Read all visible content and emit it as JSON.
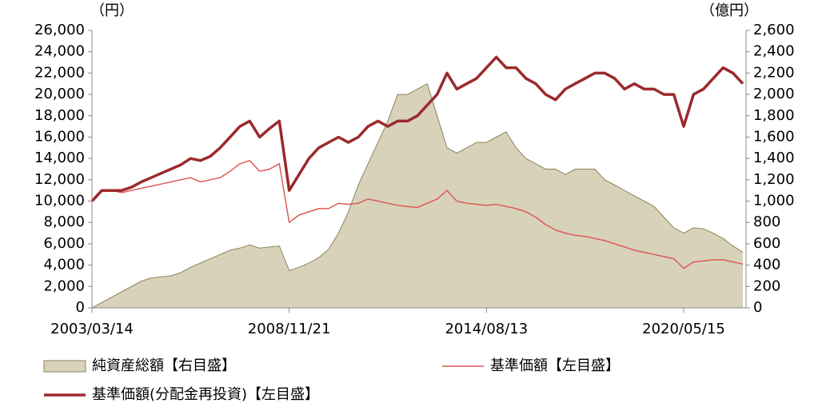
{
  "chart_data": {
    "type": "line",
    "ylabel": "（円）",
    "y2label": "（億円）",
    "categories": [
      "2003/03/14",
      null,
      null,
      null,
      null,
      null,
      null,
      null,
      null,
      null,
      null,
      null,
      null,
      null,
      null,
      null,
      null,
      null,
      null,
      null,
      "2008/11/21",
      null,
      null,
      null,
      null,
      null,
      null,
      null,
      null,
      null,
      null,
      null,
      null,
      null,
      null,
      null,
      null,
      null,
      null,
      null,
      "2014/08/13",
      null,
      null,
      null,
      null,
      null,
      null,
      null,
      null,
      null,
      null,
      null,
      null,
      null,
      null,
      null,
      null,
      null,
      null,
      null,
      "2020/05/15",
      null,
      null,
      null,
      null,
      null,
      null
    ],
    "ylim": [
      0,
      26000
    ],
    "yticks": [
      0,
      {
        "value": 2000,
        "label": "2,000"
      },
      {
        "value": 4000,
        "label": "4,000"
      },
      {
        "value": 6000,
        "label": "6,000"
      },
      {
        "value": 8000,
        "label": "8,000"
      },
      {
        "value": 10000,
        "label": "10,000"
      },
      {
        "value": 12000,
        "label": "12,000"
      },
      {
        "value": 14000,
        "label": "14,000"
      },
      {
        "value": 16000,
        "label": "16,000"
      },
      {
        "value": 18000,
        "label": "18,000"
      },
      {
        "value": 20000,
        "label": "20,000"
      },
      {
        "value": 22000,
        "label": "22,000"
      },
      {
        "value": 24000,
        "label": "24,000"
      },
      {
        "value": 26000,
        "label": "26,000"
      }
    ],
    "y2lim": [
      0,
      2600
    ],
    "y2ticks": [
      0,
      200,
      400,
      600,
      800,
      {
        "value": 1000,
        "label": "1,000"
      },
      {
        "value": 1200,
        "label": "1,200"
      },
      {
        "value": 1400,
        "label": "1,400"
      },
      {
        "value": 1600,
        "label": "1,600"
      },
      {
        "value": 1800,
        "label": "1,800"
      },
      {
        "value": 2000,
        "label": "2,000"
      },
      {
        "value": 2200,
        "label": "2,200"
      },
      {
        "value": 2400,
        "label": "2,400"
      },
      {
        "value": 2600,
        "label": "2,600"
      }
    ],
    "grid": false,
    "series": [
      {
        "name": "純資産総額【右目盛】",
        "kind": "area",
        "axis": "y2",
        "color": "#d8d2bb",
        "edge_color": "#8a845a",
        "values": [
          0,
          50,
          100,
          150,
          200,
          250,
          280,
          290,
          300,
          330,
          380,
          420,
          460,
          500,
          540,
          560,
          590,
          560,
          570,
          580,
          350,
          380,
          420,
          470,
          550,
          700,
          900,
          1150,
          1350,
          1550,
          1750,
          2000,
          2000,
          2050,
          2100,
          1800,
          1500,
          1450,
          1500,
          1550,
          1550,
          1600,
          1650,
          1500,
          1400,
          1350,
          1300,
          1300,
          1250,
          1300,
          1300,
          1300,
          1200,
          1150,
          1100,
          1050,
          1000,
          950,
          850,
          750,
          700,
          750,
          740,
          700,
          650,
          580,
          520
        ]
      },
      {
        "name": "基準価額【左目盛】",
        "kind": "line",
        "color": "#dc5a55",
        "width": 1.5,
        "values": [
          10000,
          11000,
          11000,
          10800,
          11000,
          11200,
          11400,
          11600,
          11800,
          12000,
          12200,
          11800,
          12000,
          12200,
          12800,
          13500,
          13800,
          12800,
          13000,
          13500,
          8000,
          8700,
          9000,
          9300,
          9300,
          9800,
          9700,
          9800,
          10200,
          10000,
          9800,
          9600,
          9500,
          9400,
          9800,
          10200,
          11000,
          10000,
          9800,
          9700,
          9600,
          9700,
          9500,
          9300,
          9000,
          8500,
          7800,
          7300,
          7000,
          6800,
          6700,
          6500,
          6300,
          6000,
          5700,
          5400,
          5200,
          5000,
          4800,
          4600,
          3700,
          4300,
          4400,
          4500,
          4500,
          4300,
          4100
        ]
      },
      {
        "name": "基準価額(分配金再投資)【左目盛】",
        "kind": "line",
        "color": "#9b2a2d",
        "width": 3.5,
        "values": [
          10000,
          11000,
          11000,
          11000,
          11300,
          11800,
          12200,
          12600,
          13000,
          13400,
          14000,
          13800,
          14200,
          15000,
          16000,
          17000,
          17500,
          16000,
          16800,
          17500,
          11000,
          12500,
          14000,
          15000,
          15500,
          16000,
          15500,
          16000,
          17000,
          17500,
          17000,
          17500,
          17500,
          18000,
          19000,
          20000,
          22000,
          20500,
          21000,
          21500,
          22500,
          23500,
          22500,
          22500,
          21500,
          21000,
          20000,
          19500,
          20500,
          21000,
          21500,
          22000,
          22000,
          21500,
          20500,
          21000,
          20500,
          20500,
          20000,
          20000,
          17000,
          20000,
          20500,
          21500,
          22500,
          22000,
          21000
        ]
      }
    ]
  }
}
